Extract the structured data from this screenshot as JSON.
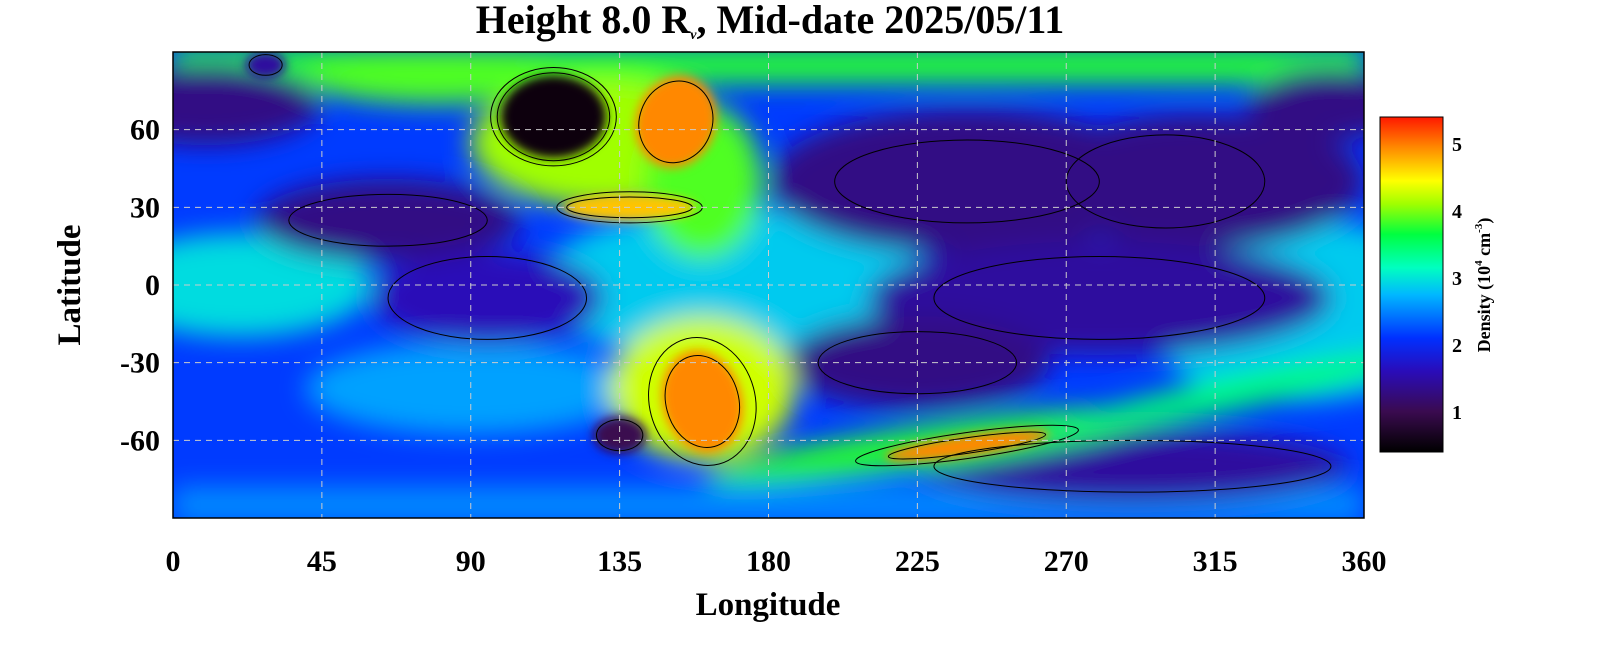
{
  "chart_data": {
    "type": "heatmap",
    "title_text": "Height 8.0 R",
    "title_subscript": "ν",
    "title_suffix": ", Mid-date 2025/05/11",
    "xlabel": "Longitude",
    "ylabel": "Latitude",
    "xlim": [
      0,
      360
    ],
    "ylim": [
      -90,
      90
    ],
    "xticks": [
      0,
      45,
      90,
      135,
      180,
      225,
      270,
      315,
      360
    ],
    "yticks": [
      60,
      30,
      0,
      -30,
      -60
    ],
    "grid": true,
    "colorbar": {
      "label": "Density (10",
      "label_exp": "4",
      "label_unit": " cm",
      "label_unit_exp": "-3",
      "label_close": ")",
      "range": [
        0.4,
        5.4
      ],
      "ticks": [
        1,
        2,
        3,
        4,
        5
      ]
    },
    "density_features": [
      {
        "feature": "north polar band",
        "lon_range": [
          0,
          360
        ],
        "lat": 84,
        "density": 3.6
      },
      {
        "feature": "southern polar band",
        "lon_range": [
          0,
          360
        ],
        "lat": -80,
        "density": 2.4
      },
      {
        "feature": "north streamer arm",
        "lon_range": [
          90,
          180
        ],
        "lat_range": [
          30,
          75
        ],
        "density": 3.8
      },
      {
        "feature": "north peak",
        "lon": 152,
        "lat": 63,
        "density": 4.7
      },
      {
        "feature": "north peak",
        "lon": 135,
        "lat": 30,
        "density": 4.6
      },
      {
        "feature": "south streamer peak",
        "lon": 160,
        "lat": -45,
        "density": 4.8
      },
      {
        "feature": "south streamer peak",
        "lon": 240,
        "lat": -62,
        "density": 5.0
      },
      {
        "feature": "low density hole",
        "lon": 115,
        "lat": 65,
        "density": 0.5
      },
      {
        "feature": "low density hole",
        "lon": 135,
        "lat": -58,
        "density": 0.9
      },
      {
        "feature": "low region",
        "lon": 65,
        "lat": 25,
        "density": 1.0
      },
      {
        "feature": "low region",
        "lon": 275,
        "lat": -70,
        "density": 1.0
      },
      {
        "feature": "low region",
        "lon": 240,
        "lat": 40,
        "density": 1.0
      },
      {
        "feature": "equatorial band",
        "lon_range": [
          110,
          210
        ],
        "lat_range": [
          -20,
          20
        ],
        "density": 2.5
      }
    ]
  }
}
